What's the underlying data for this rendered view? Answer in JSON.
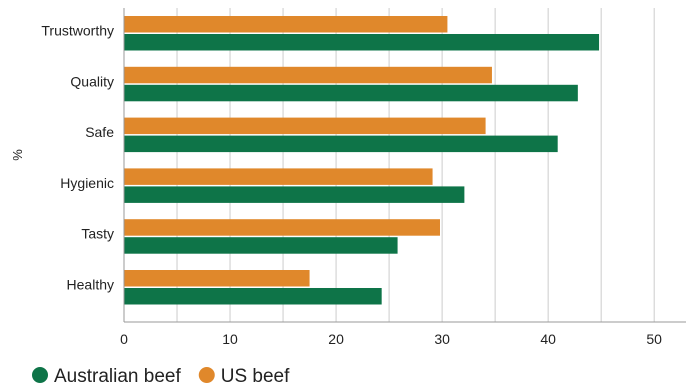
{
  "chart_data": {
    "type": "bar",
    "orientation": "horizontal",
    "categories": [
      "Trustworthy",
      "Quality",
      "Safe",
      "Hygienic",
      "Tasty",
      "Healthy"
    ],
    "series": [
      {
        "name": "US beef",
        "values": [
          30.5,
          34.7,
          34.1,
          29.1,
          29.8,
          17.5
        ]
      },
      {
        "name": "Australian beef",
        "values": [
          44.8,
          42.8,
          40.9,
          32.1,
          25.8,
          24.3
        ]
      }
    ],
    "xticks": [
      "0",
      "10",
      "20",
      "30",
      "40",
      "50"
    ],
    "xlim": [
      0,
      53
    ],
    "ylabel": "%",
    "grid": true,
    "legend": {
      "placement": "bottom-left",
      "items": [
        {
          "label": "Australian beef",
          "color": "#0e7448"
        },
        {
          "label": "US beef",
          "color": "#e0882b"
        }
      ]
    },
    "colors": {
      "US beef": "#e0882b",
      "Australian beef": "#0e7448"
    }
  }
}
